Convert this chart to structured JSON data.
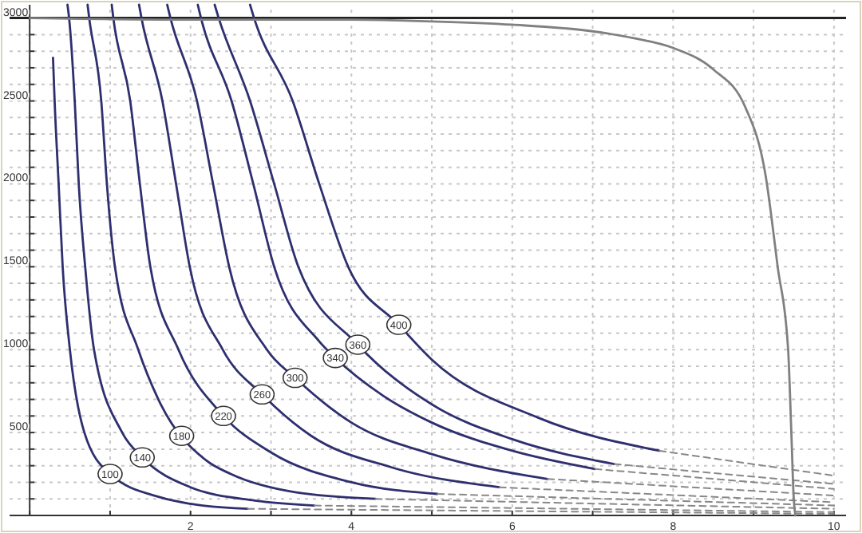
{
  "chart_data": {
    "type": "line",
    "xlim": [
      -0.25,
      10.15
    ],
    "ylim": [
      0,
      3080
    ],
    "xticks": [
      {
        "value": 0,
        "label": null
      },
      {
        "value": 1,
        "label": null
      },
      2,
      {
        "value": 3,
        "label": null
      },
      4,
      {
        "value": 5,
        "label": null
      },
      6,
      {
        "value": 7,
        "label": null
      },
      8,
      {
        "value": 9,
        "label": null
      },
      10
    ],
    "yticks": [
      {
        "value": 0,
        "label": null
      },
      {
        "value": 100,
        "label": null
      },
      {
        "value": 200,
        "label": null
      },
      {
        "value": 300,
        "label": null
      },
      {
        "value": 400,
        "label": null
      },
      500,
      {
        "value": 600,
        "label": null
      },
      {
        "value": 700,
        "label": null
      },
      {
        "value": 800,
        "label": null
      },
      {
        "value": 900,
        "label": null
      },
      1000,
      {
        "value": 1100,
        "label": null
      },
      {
        "value": 1200,
        "label": null
      },
      {
        "value": 1300,
        "label": null
      },
      {
        "value": 1400,
        "label": null
      },
      1500,
      {
        "value": 1600,
        "label": null
      },
      {
        "value": 1700,
        "label": null
      },
      {
        "value": 1800,
        "label": null
      },
      {
        "value": 1900,
        "label": null
      },
      2000,
      {
        "value": 2100,
        "label": null
      },
      {
        "value": 2200,
        "label": null
      },
      {
        "value": 2300,
        "label": null
      },
      {
        "value": 2400,
        "label": null
      },
      2500,
      {
        "value": 2600,
        "label": null
      },
      {
        "value": 2700,
        "label": null
      },
      {
        "value": 2800,
        "label": null
      },
      {
        "value": 2900,
        "label": null
      },
      3000
    ],
    "grid": true,
    "marker": "none",
    "line_style": "solid",
    "ref_lines": [
      {
        "axis": "y",
        "value": 3000,
        "color": "#222222"
      }
    ],
    "series": [
      {
        "color": "#2e2f6e",
        "x": [
          0.29,
          0.31,
          0.36,
          0.41,
          0.5,
          0.68,
          1.0,
          1.62,
          2.0,
          2.71
        ],
        "values": [
          2760,
          2500,
          2000,
          1500,
          1000,
          500,
          250,
          110,
          70,
          40
        ]
      },
      {
        "color": "#2e2f6e",
        "x": [
          0.47,
          0.49,
          0.56,
          0.61,
          0.69,
          0.8,
          1.15,
          1.4,
          2.0,
          2.8,
          3.54
        ],
        "values": [
          3080,
          3000,
          2500,
          2000,
          1500,
          1000,
          500,
          350,
          170,
          90,
          60
        ]
      },
      {
        "color": "#2e2f6e",
        "x": [
          0.72,
          0.74,
          0.89,
          0.96,
          1.06,
          1.35,
          1.6,
          2.2,
          2.5,
          3.3,
          4.3
        ],
        "values": [
          3080,
          3000,
          2500,
          2000,
          1500,
          1000,
          700,
          330,
          250,
          140,
          100
        ]
      },
      {
        "color": "#2e2f6e",
        "x": [
          1.02,
          1.04,
          1.25,
          1.37,
          1.5,
          1.85,
          2.41,
          3.0,
          4.0,
          5.07
        ],
        "values": [
          3080,
          3000,
          2500,
          2000,
          1500,
          1000,
          600,
          380,
          200,
          130
        ]
      },
      {
        "color": "#2e2f6e",
        "x": [
          1.36,
          1.39,
          1.65,
          1.82,
          1.99,
          2.4,
          2.89,
          3.5,
          4.5,
          5.84
        ],
        "values": [
          3080,
          3000,
          2500,
          2000,
          1500,
          1000,
          730,
          480,
          290,
          170
        ]
      },
      {
        "color": "#2e2f6e",
        "x": [
          1.71,
          1.75,
          2.08,
          2.28,
          2.48,
          2.95,
          3.3,
          4.0,
          5.0,
          6.44
        ],
        "values": [
          3080,
          3000,
          2500,
          2000,
          1500,
          1000,
          830,
          560,
          370,
          220
        ]
      },
      {
        "color": "#2e2f6e",
        "x": [
          2.09,
          2.13,
          2.51,
          2.78,
          3.04,
          3.6,
          3.8,
          4.4,
          5.0,
          6.0,
          7.03
        ],
        "values": [
          3080,
          3000,
          2500,
          2000,
          1500,
          1050,
          950,
          720,
          560,
          390,
          280
        ]
      },
      {
        "color": "#2e2f6e",
        "x": [
          2.3,
          2.35,
          2.74,
          3.04,
          3.34,
          4.08,
          5.0,
          6.0,
          7.27
        ],
        "values": [
          3080,
          3000,
          2500,
          2000,
          1500,
          1030,
          670,
          460,
          310
        ]
      },
      {
        "color": "#2e2f6e",
        "x": [
          2.74,
          2.79,
          3.27,
          3.6,
          3.96,
          4.59,
          5.0,
          6.32,
          7.83
        ],
        "values": [
          3080,
          3000,
          2500,
          2000,
          1500,
          1150,
          940,
          590,
          390
        ]
      },
      {
        "color": "#888888",
        "line_style": "dashed",
        "x": [
          2.71,
          10
        ],
        "values": [
          40,
          10
        ]
      },
      {
        "color": "#888888",
        "line_style": "dashed",
        "x": [
          3.54,
          10
        ],
        "values": [
          60,
          20
        ]
      },
      {
        "color": "#888888",
        "line_style": "dashed",
        "x": [
          4.3,
          10
        ],
        "values": [
          100,
          40
        ]
      },
      {
        "color": "#888888",
        "line_style": "dashed",
        "x": [
          5.07,
          10
        ],
        "values": [
          130,
          60
        ]
      },
      {
        "color": "#888888",
        "line_style": "dashed",
        "x": [
          5.84,
          10
        ],
        "values": [
          170,
          80
        ]
      },
      {
        "color": "#888888",
        "line_style": "dashed",
        "x": [
          6.44,
          10
        ],
        "values": [
          220,
          120
        ]
      },
      {
        "color": "#888888",
        "line_style": "dashed",
        "x": [
          7.03,
          10
        ],
        "values": [
          280,
          160
        ]
      },
      {
        "color": "#888888",
        "line_style": "dashed",
        "x": [
          7.27,
          10
        ],
        "values": [
          310,
          190
        ]
      },
      {
        "color": "#888888",
        "line_style": "dashed",
        "x": [
          7.83,
          10
        ],
        "values": [
          390,
          240
        ]
      },
      {
        "color": "#808080",
        "x": [
          0,
          2,
          4,
          5,
          6,
          7,
          7.5,
          8,
          8.5,
          8.9,
          9.15,
          9.3,
          9.43,
          9.47,
          9.5,
          9.52
        ],
        "values": [
          3000,
          2990,
          2990,
          2980,
          2960,
          2920,
          2880,
          2820,
          2690,
          2460,
          2050,
          1500,
          1000,
          500,
          100,
          0
        ]
      }
    ],
    "annotations": [
      {
        "text": "100",
        "x": 1.0,
        "y": 250
      },
      {
        "text": "140",
        "x": 1.4,
        "y": 350
      },
      {
        "text": "180",
        "x": 1.89,
        "y": 480
      },
      {
        "text": "220",
        "x": 2.41,
        "y": 600
      },
      {
        "text": "260",
        "x": 2.89,
        "y": 730
      },
      {
        "text": "300",
        "x": 3.3,
        "y": 830
      },
      {
        "text": "340",
        "x": 3.8,
        "y": 950
      },
      {
        "text": "360",
        "x": 4.08,
        "y": 1030
      },
      {
        "text": "400",
        "x": 4.59,
        "y": 1150
      }
    ]
  }
}
